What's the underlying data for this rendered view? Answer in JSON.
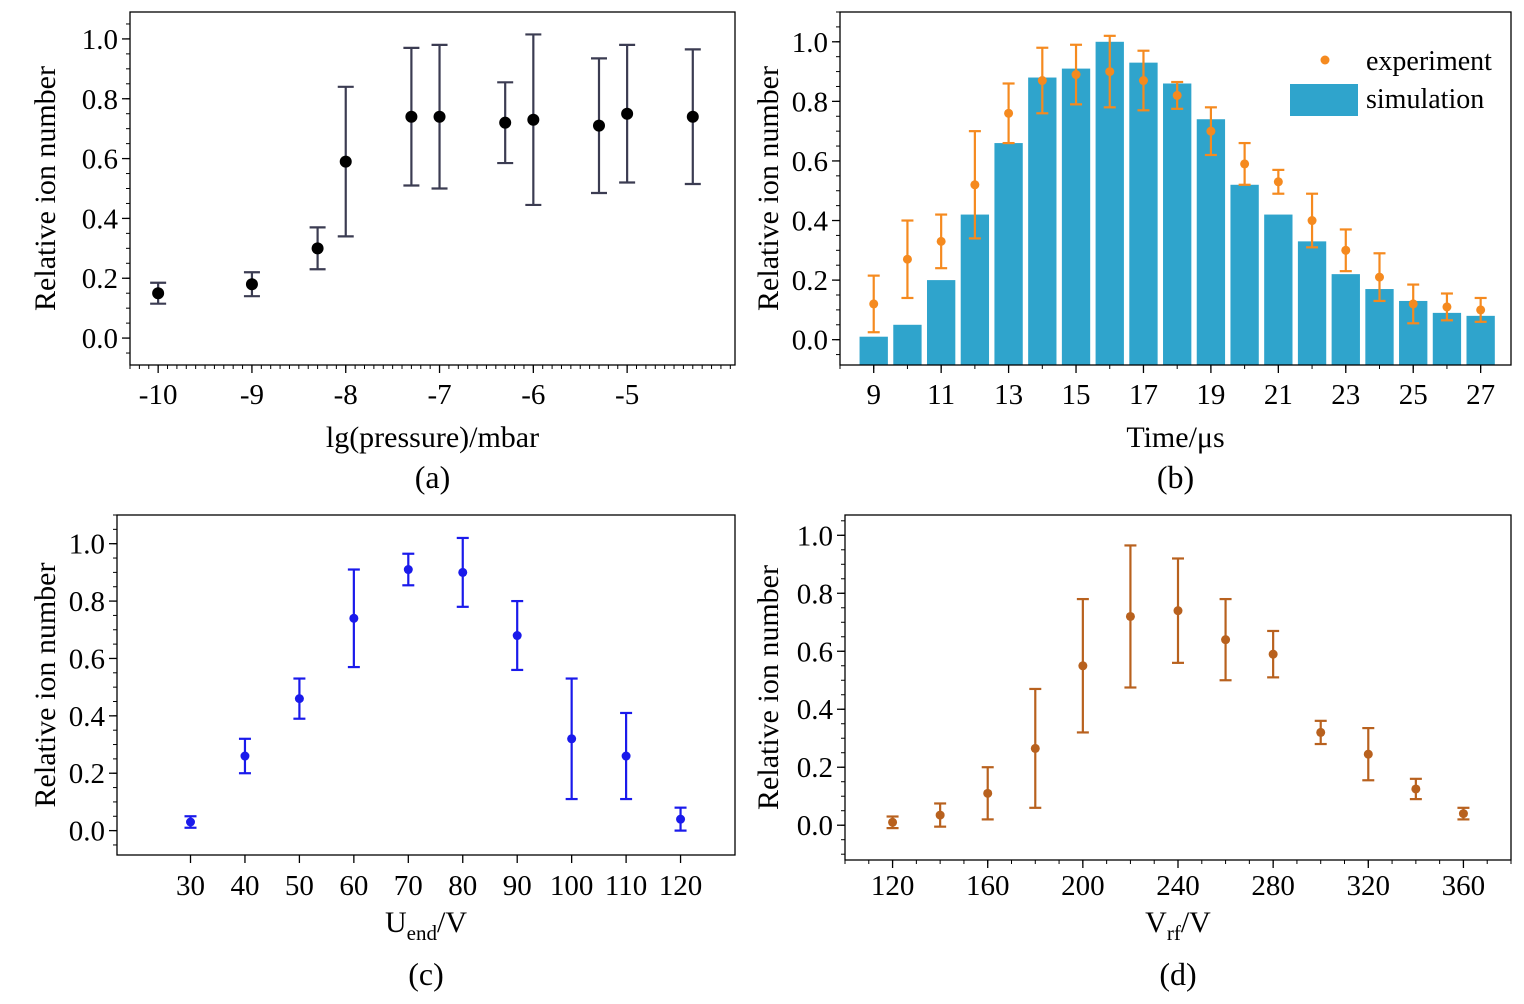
{
  "chart_data": [
    {
      "panel_label": "(a)",
      "type": "scatter",
      "xlabel": "lg(pressure)/mbar",
      "ylabel": "Relative ion number",
      "xlim": [
        -10.3,
        -3.85
      ],
      "ylim": [
        -0.09,
        1.09
      ],
      "xticks": [
        -10,
        -9,
        -8,
        -7,
        -6,
        -5
      ],
      "xtick_labels": [
        "-10",
        "-9",
        "-8",
        "-7",
        "-6",
        "-5"
      ],
      "yticks": [
        0,
        0.2,
        0.4,
        0.6,
        0.8,
        1.0
      ],
      "ytick_labels": [
        "0.0",
        "0.2",
        "0.4",
        "0.6",
        "0.8",
        "1.0"
      ],
      "colors": {
        "marker": "#000000",
        "errorbar": "#3b3c52"
      },
      "series": [
        {
          "x": [
            -10,
            -9,
            -8.3,
            -8,
            -7.3,
            -7,
            -6.3,
            -6,
            -5.3,
            -5,
            -4.3
          ],
          "y": [
            0.15,
            0.18,
            0.3,
            0.59,
            0.74,
            0.74,
            0.72,
            0.73,
            0.71,
            0.75,
            0.74
          ],
          "err": [
            0.035,
            0.04,
            0.07,
            0.25,
            0.23,
            0.24,
            0.135,
            0.285,
            0.225,
            0.23,
            0.225
          ]
        }
      ]
    },
    {
      "panel_label": "(b)",
      "type": "bar",
      "xlabel": "Time/μs",
      "ylabel": "Relative ion number",
      "xlim": [
        8.0,
        27.9
      ],
      "ylim": [
        -0.085,
        1.1
      ],
      "xticks": [
        9,
        11,
        13,
        15,
        17,
        19,
        21,
        23,
        25,
        27
      ],
      "xtick_labels": [
        "9",
        "11",
        "13",
        "15",
        "17",
        "19",
        "21",
        "23",
        "25",
        "27"
      ],
      "yticks": [
        0,
        0.2,
        0.4,
        0.6,
        0.8,
        1.0
      ],
      "ytick_labels": [
        "0.0",
        "0.2",
        "0.4",
        "0.6",
        "0.8",
        "1.0"
      ],
      "colors": {
        "bar": "#2fa4cc",
        "marker": "#f58a1f"
      },
      "legend": {
        "placement": "top-right",
        "entries": [
          "experiment",
          "simulation"
        ]
      },
      "series": [
        {
          "name": "simulation",
          "type": "bar",
          "x": [
            9,
            10,
            11,
            12,
            13,
            14,
            15,
            16,
            17,
            18,
            19,
            20,
            21,
            22,
            23,
            24,
            25,
            26,
            27
          ],
          "values": [
            0.01,
            0.05,
            0.2,
            0.42,
            0.66,
            0.88,
            0.91,
            1.0,
            0.93,
            0.86,
            0.74,
            0.52,
            0.42,
            0.33,
            0.22,
            0.17,
            0.13,
            0.09,
            0.08
          ]
        },
        {
          "name": "experiment",
          "type": "scatter",
          "x": [
            9,
            10,
            11,
            12,
            13,
            14,
            15,
            16,
            17,
            18,
            19,
            20,
            21,
            22,
            23,
            24,
            25,
            26,
            27
          ],
          "y": [
            0.12,
            0.27,
            0.33,
            0.52,
            0.76,
            0.87,
            0.89,
            0.9,
            0.87,
            0.82,
            0.7,
            0.59,
            0.53,
            0.4,
            0.3,
            0.21,
            0.12,
            0.11,
            0.1
          ],
          "err": [
            0.095,
            0.13,
            0.09,
            0.18,
            0.1,
            0.11,
            0.1,
            0.12,
            0.1,
            0.045,
            0.08,
            0.07,
            0.04,
            0.09,
            0.07,
            0.08,
            0.065,
            0.045,
            0.04
          ]
        }
      ]
    },
    {
      "panel_label": "(c)",
      "type": "scatter",
      "xlabel": "U",
      "xlabel_sub": "end",
      "xlabel_suffix": "/V",
      "ylabel": "Relative ion number",
      "xlim": [
        16.5,
        130.0
      ],
      "ylim": [
        -0.085,
        1.1
      ],
      "xticks": [
        30,
        40,
        50,
        60,
        70,
        80,
        90,
        100,
        110,
        120
      ],
      "xtick_labels": [
        "30",
        "40",
        "50",
        "60",
        "70",
        "80",
        "90",
        "100",
        "110",
        "120"
      ],
      "yticks": [
        0,
        0.2,
        0.4,
        0.6,
        0.8,
        1.0
      ],
      "ytick_labels": [
        "0.0",
        "0.2",
        "0.4",
        "0.6",
        "0.8",
        "1.0"
      ],
      "colors": {
        "marker": "#1a1aeb",
        "errorbar": "#1a1aeb"
      },
      "series": [
        {
          "x": [
            30,
            40,
            50,
            60,
            70,
            80,
            90,
            100,
            110,
            120
          ],
          "y": [
            0.03,
            0.26,
            0.46,
            0.74,
            0.91,
            0.9,
            0.68,
            0.32,
            0.26,
            0.04
          ],
          "err": [
            0.02,
            0.06,
            0.07,
            0.17,
            0.055,
            0.12,
            0.12,
            0.21,
            0.15,
            0.04
          ]
        }
      ]
    },
    {
      "panel_label": "(d)",
      "type": "scatter",
      "xlabel": "V",
      "xlabel_sub": "rf",
      "xlabel_suffix": "/V",
      "ylabel": "Relative ion number",
      "xlim": [
        100,
        380
      ],
      "ylim": [
        -0.12,
        1.07
      ],
      "xticks": [
        120,
        160,
        200,
        240,
        280,
        320,
        360
      ],
      "xtick_labels": [
        "120",
        "160",
        "200",
        "240",
        "280",
        "320",
        "360"
      ],
      "yticks": [
        0,
        0.2,
        0.4,
        0.6,
        0.8,
        1.0
      ],
      "ytick_labels": [
        "0.0",
        "0.2",
        "0.4",
        "0.6",
        "0.8",
        "1.0"
      ],
      "colors": {
        "marker": "#b8611e",
        "errorbar": "#b8611e"
      },
      "series": [
        {
          "x": [
            120,
            140,
            160,
            180,
            200,
            220,
            240,
            260,
            280,
            300,
            320,
            340,
            360
          ],
          "y": [
            0.01,
            0.035,
            0.11,
            0.265,
            0.55,
            0.72,
            0.74,
            0.64,
            0.59,
            0.32,
            0.245,
            0.125,
            0.04
          ],
          "err": [
            0.02,
            0.04,
            0.09,
            0.205,
            0.23,
            0.245,
            0.18,
            0.14,
            0.08,
            0.04,
            0.09,
            0.035,
            0.02
          ]
        }
      ]
    }
  ]
}
